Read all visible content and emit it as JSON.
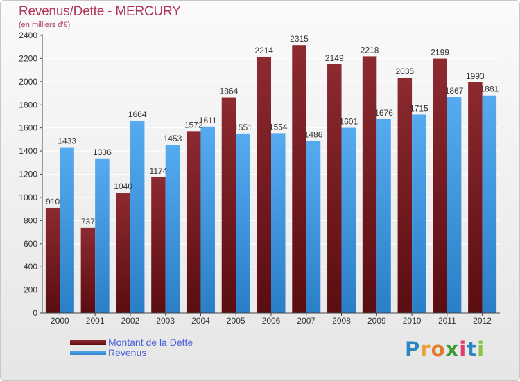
{
  "header": {
    "title": "Revenus/Dette - MERCURY",
    "subtitle": "(en milliers d'€)"
  },
  "colors": {
    "dette": "#6e1a1e",
    "revenus": "#3d95de",
    "grid": "#ffffff",
    "axis": "#444444",
    "label": "#333333"
  },
  "chart_data": {
    "type": "bar",
    "title": "Revenus/Dette - MERCURY",
    "subtitle": "(en milliers d'€)",
    "xlabel": "",
    "ylabel": "",
    "ylim": [
      0,
      2400
    ],
    "yticks": [
      0,
      200,
      400,
      600,
      800,
      1000,
      1200,
      1400,
      1600,
      1800,
      2000,
      2200,
      2400
    ],
    "categories": [
      "2000",
      "2001",
      "2002",
      "2003",
      "2004",
      "2005",
      "2006",
      "2007",
      "2008",
      "2009",
      "2010",
      "2011",
      "2012"
    ],
    "series": [
      {
        "name": "Montant de la Dette",
        "values": [
          910,
          737,
          1040,
          1174,
          1572,
          1864,
          2214,
          2315,
          2149,
          2218,
          2035,
          2199,
          1993
        ]
      },
      {
        "name": "Revenus",
        "values": [
          1433,
          1336,
          1664,
          1453,
          1611,
          1551,
          1554,
          1486,
          1601,
          1676,
          1715,
          1867,
          1881
        ]
      }
    ],
    "legend_position": "bottom-left",
    "grid": true
  },
  "legend": {
    "items": [
      {
        "label": "Montant de la Dette"
      },
      {
        "label": "Revenus"
      }
    ]
  },
  "logo": {
    "letters": [
      "P",
      "r",
      "o",
      "x",
      "i",
      "t",
      "i"
    ],
    "colors": [
      "#2e86c1",
      "#e8a33c",
      "#e07a2d",
      "#3e9b3a",
      "#e03c6b",
      "#2e86c1",
      "#8bc34a"
    ]
  }
}
